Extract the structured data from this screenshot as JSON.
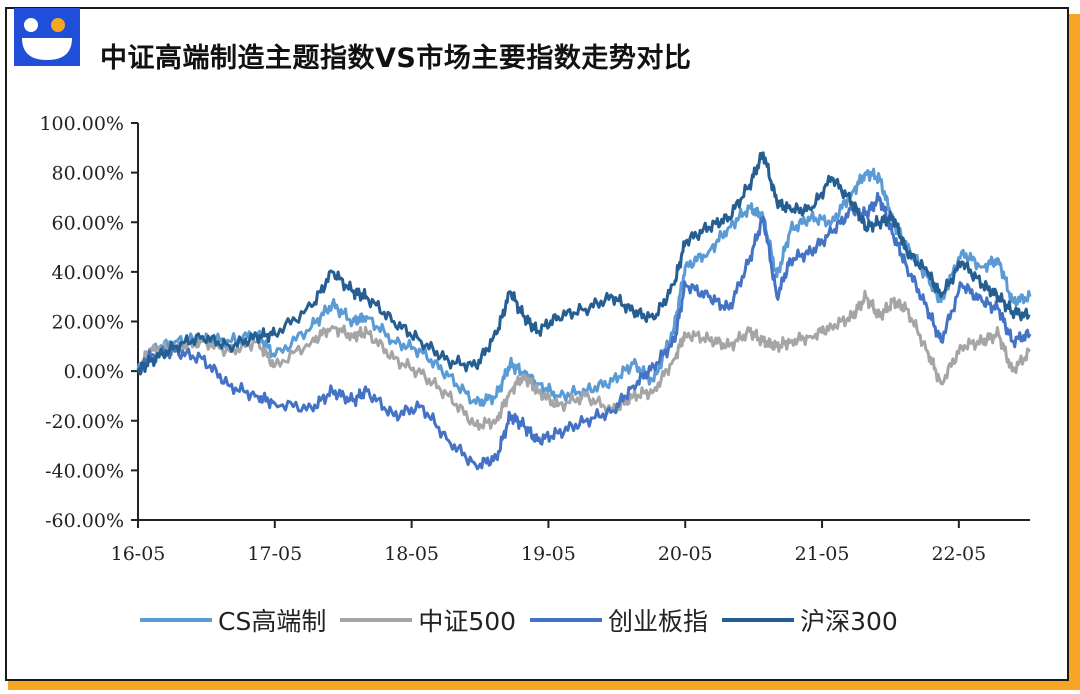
{
  "chart_data": {
    "type": "line",
    "title": "中证高端制造主题指数VS市场主要指数走势对比",
    "xlabel": "",
    "ylabel": "",
    "x_ticks": [
      "16-05",
      "17-05",
      "18-05",
      "19-05",
      "20-05",
      "21-05",
      "22-05"
    ],
    "y_ticks": [
      "100.00%",
      "80.00%",
      "60.00%",
      "40.00%",
      "20.00%",
      "0.00%",
      "-20.00%",
      "-40.00%",
      "-60.00%"
    ],
    "ylim": [
      -60,
      100
    ],
    "xlim": [
      2016.33,
      2022.85
    ],
    "grid": false,
    "legend_position": "bottom",
    "series": [
      {
        "name": "CS高端制",
        "color": "#5b9bd5",
        "points": [
          [
            2016.33,
            0
          ],
          [
            2016.42,
            8
          ],
          [
            2016.6,
            12
          ],
          [
            2016.8,
            13
          ],
          [
            2017.0,
            12
          ],
          [
            2017.2,
            15
          ],
          [
            2017.33,
            6
          ],
          [
            2017.6,
            18
          ],
          [
            2017.75,
            27
          ],
          [
            2017.9,
            20
          ],
          [
            2018.0,
            22
          ],
          [
            2018.2,
            12
          ],
          [
            2018.4,
            8
          ],
          [
            2018.6,
            -2
          ],
          [
            2018.8,
            -13
          ],
          [
            2018.95,
            -10
          ],
          [
            2019.05,
            3
          ],
          [
            2019.15,
            -1
          ],
          [
            2019.25,
            -5
          ],
          [
            2019.4,
            -10
          ],
          [
            2019.6,
            -8
          ],
          [
            2019.8,
            -4
          ],
          [
            2019.95,
            3
          ],
          [
            2020.1,
            -4
          ],
          [
            2020.25,
            18
          ],
          [
            2020.33,
            42
          ],
          [
            2020.5,
            48
          ],
          [
            2020.65,
            58
          ],
          [
            2020.8,
            66
          ],
          [
            2020.9,
            62
          ],
          [
            2021.0,
            38
          ],
          [
            2021.1,
            57
          ],
          [
            2021.25,
            62
          ],
          [
            2021.4,
            60
          ],
          [
            2021.55,
            72
          ],
          [
            2021.65,
            80
          ],
          [
            2021.75,
            78
          ],
          [
            2021.85,
            60
          ],
          [
            2021.95,
            50
          ],
          [
            2022.1,
            38
          ],
          [
            2022.2,
            28
          ],
          [
            2022.35,
            48
          ],
          [
            2022.5,
            42
          ],
          [
            2022.62,
            45
          ],
          [
            2022.72,
            28
          ],
          [
            2022.85,
            30
          ]
        ]
      },
      {
        "name": "中证500",
        "color": "#a5a5a5",
        "points": [
          [
            2016.33,
            0
          ],
          [
            2016.42,
            9
          ],
          [
            2016.6,
            9
          ],
          [
            2016.8,
            12
          ],
          [
            2017.0,
            8
          ],
          [
            2017.2,
            12
          ],
          [
            2017.33,
            2
          ],
          [
            2017.6,
            12
          ],
          [
            2017.75,
            18
          ],
          [
            2017.9,
            14
          ],
          [
            2018.0,
            16
          ],
          [
            2018.2,
            5
          ],
          [
            2018.4,
            -1
          ],
          [
            2018.6,
            -10
          ],
          [
            2018.8,
            -22
          ],
          [
            2018.95,
            -20
          ],
          [
            2019.05,
            -8
          ],
          [
            2019.15,
            -2
          ],
          [
            2019.25,
            -8
          ],
          [
            2019.4,
            -14
          ],
          [
            2019.6,
            -10
          ],
          [
            2019.8,
            -16
          ],
          [
            2019.95,
            -10
          ],
          [
            2020.1,
            -8
          ],
          [
            2020.25,
            5
          ],
          [
            2020.33,
            15
          ],
          [
            2020.5,
            13
          ],
          [
            2020.65,
            10
          ],
          [
            2020.8,
            16
          ],
          [
            2020.9,
            12
          ],
          [
            2021.0,
            10
          ],
          [
            2021.1,
            12
          ],
          [
            2021.25,
            14
          ],
          [
            2021.4,
            18
          ],
          [
            2021.55,
            22
          ],
          [
            2021.65,
            30
          ],
          [
            2021.75,
            22
          ],
          [
            2021.85,
            28
          ],
          [
            2021.95,
            25
          ],
          [
            2022.1,
            8
          ],
          [
            2022.2,
            -5
          ],
          [
            2022.35,
            10
          ],
          [
            2022.5,
            12
          ],
          [
            2022.62,
            15
          ],
          [
            2022.72,
            0
          ],
          [
            2022.85,
            8
          ]
        ]
      },
      {
        "name": "创业板指",
        "color": "#4472c4",
        "points": [
          [
            2016.33,
            0
          ],
          [
            2016.42,
            6
          ],
          [
            2016.6,
            8
          ],
          [
            2016.8,
            5
          ],
          [
            2017.0,
            -6
          ],
          [
            2017.2,
            -10
          ],
          [
            2017.33,
            -13
          ],
          [
            2017.6,
            -15
          ],
          [
            2017.75,
            -8
          ],
          [
            2017.9,
            -12
          ],
          [
            2018.0,
            -8
          ],
          [
            2018.2,
            -18
          ],
          [
            2018.4,
            -14
          ],
          [
            2018.6,
            -28
          ],
          [
            2018.8,
            -38
          ],
          [
            2018.95,
            -35
          ],
          [
            2019.05,
            -18
          ],
          [
            2019.15,
            -22
          ],
          [
            2019.25,
            -28
          ],
          [
            2019.4,
            -25
          ],
          [
            2019.6,
            -20
          ],
          [
            2019.8,
            -16
          ],
          [
            2019.95,
            -6
          ],
          [
            2020.1,
            2
          ],
          [
            2020.25,
            12
          ],
          [
            2020.33,
            35
          ],
          [
            2020.5,
            30
          ],
          [
            2020.65,
            25
          ],
          [
            2020.8,
            45
          ],
          [
            2020.9,
            62
          ],
          [
            2021.0,
            30
          ],
          [
            2021.1,
            45
          ],
          [
            2021.25,
            48
          ],
          [
            2021.4,
            56
          ],
          [
            2021.55,
            65
          ],
          [
            2021.65,
            63
          ],
          [
            2021.75,
            70
          ],
          [
            2021.85,
            55
          ],
          [
            2021.95,
            42
          ],
          [
            2022.1,
            25
          ],
          [
            2022.2,
            12
          ],
          [
            2022.35,
            35
          ],
          [
            2022.5,
            28
          ],
          [
            2022.62,
            25
          ],
          [
            2022.72,
            12
          ],
          [
            2022.85,
            15
          ]
        ]
      },
      {
        "name": "沪深300",
        "color": "#255e91",
        "points": [
          [
            2016.33,
            0
          ],
          [
            2016.42,
            4
          ],
          [
            2016.6,
            10
          ],
          [
            2016.8,
            14
          ],
          [
            2017.0,
            10
          ],
          [
            2017.2,
            14
          ],
          [
            2017.33,
            15
          ],
          [
            2017.6,
            26
          ],
          [
            2017.75,
            40
          ],
          [
            2017.9,
            32
          ],
          [
            2018.0,
            30
          ],
          [
            2018.2,
            20
          ],
          [
            2018.4,
            12
          ],
          [
            2018.6,
            4
          ],
          [
            2018.8,
            2
          ],
          [
            2018.95,
            15
          ],
          [
            2019.05,
            32
          ],
          [
            2019.15,
            22
          ],
          [
            2019.25,
            16
          ],
          [
            2019.4,
            22
          ],
          [
            2019.6,
            25
          ],
          [
            2019.8,
            30
          ],
          [
            2019.95,
            24
          ],
          [
            2020.1,
            21
          ],
          [
            2020.25,
            35
          ],
          [
            2020.33,
            52
          ],
          [
            2020.5,
            58
          ],
          [
            2020.65,
            62
          ],
          [
            2020.8,
            75
          ],
          [
            2020.9,
            88
          ],
          [
            2021.0,
            68
          ],
          [
            2021.1,
            65
          ],
          [
            2021.25,
            65
          ],
          [
            2021.4,
            78
          ],
          [
            2021.55,
            68
          ],
          [
            2021.65,
            58
          ],
          [
            2021.75,
            60
          ],
          [
            2021.85,
            62
          ],
          [
            2021.95,
            48
          ],
          [
            2022.1,
            40
          ],
          [
            2022.2,
            30
          ],
          [
            2022.35,
            44
          ],
          [
            2022.5,
            35
          ],
          [
            2022.62,
            30
          ],
          [
            2022.72,
            24
          ],
          [
            2022.85,
            22
          ]
        ]
      }
    ]
  }
}
